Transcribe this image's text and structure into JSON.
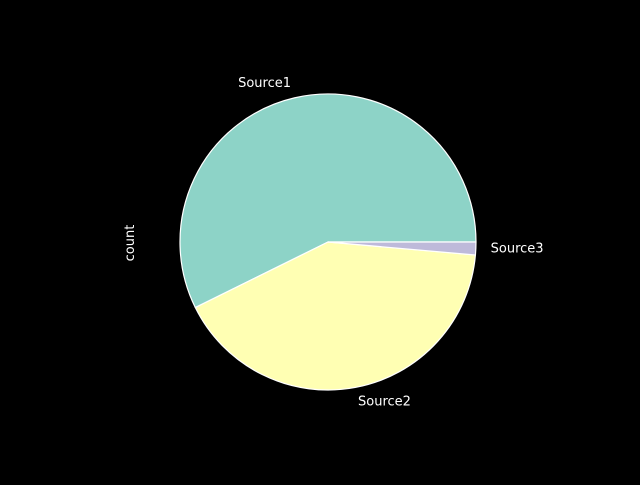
{
  "chart_data": {
    "type": "pie",
    "ylabel": "count",
    "labels": [
      "Source1",
      "Source2",
      "Source3"
    ],
    "values": [
      57.3,
      41.3,
      1.4
    ],
    "colors": [
      "#8dd3c7",
      "#ffffb3",
      "#bebada"
    ],
    "edge_color": "#ffffff",
    "background": "#000000",
    "start_angle_deg": 0,
    "direction": "counterclockwise"
  }
}
